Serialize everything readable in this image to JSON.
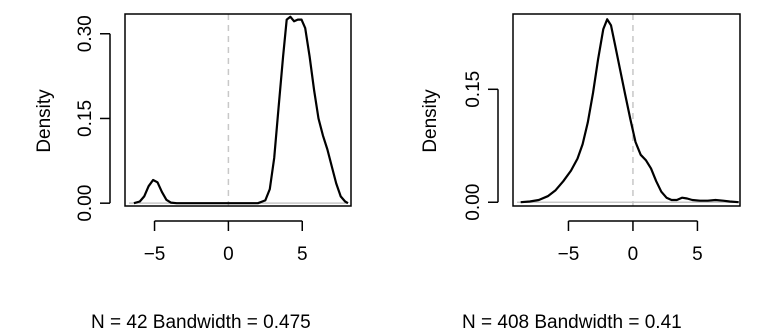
{
  "chart_data": [
    {
      "type": "line",
      "title": "",
      "xlabel": "N = 42   Bandwidth = 0.475",
      "ylabel": "Density",
      "xlim": [
        -7,
        8.3
      ],
      "ylim": [
        -0.005,
        0.335
      ],
      "x_ticks": [
        -5,
        0,
        5
      ],
      "y_ticks": [
        0.0,
        0.15,
        0.3
      ],
      "y_tick_labels": [
        "0.00",
        "0.15",
        "0.30"
      ],
      "reference_line": {
        "x": 0,
        "style": "dashed",
        "color": "#c8c8c8"
      },
      "baseline": {
        "y": 0,
        "color": "#c8c8c8"
      },
      "series": [
        {
          "values": [
            [
              -6.4,
              0.0
            ],
            [
              -6.0,
              0.003
            ],
            [
              -5.7,
              0.012
            ],
            [
              -5.4,
              0.03
            ],
            [
              -5.1,
              0.041
            ],
            [
              -4.8,
              0.037
            ],
            [
              -4.5,
              0.02
            ],
            [
              -4.2,
              0.006
            ],
            [
              -3.9,
              0.001
            ],
            [
              -3.5,
              0.0
            ],
            [
              -1,
              0.0
            ],
            [
              1,
              0.0
            ],
            [
              2.0,
              0.0
            ],
            [
              2.5,
              0.005
            ],
            [
              2.8,
              0.025
            ],
            [
              3.1,
              0.08
            ],
            [
              3.4,
              0.17
            ],
            [
              3.7,
              0.26
            ],
            [
              3.95,
              0.325
            ],
            [
              4.2,
              0.33
            ],
            [
              4.45,
              0.322
            ],
            [
              4.7,
              0.325
            ],
            [
              4.95,
              0.325
            ],
            [
              5.2,
              0.31
            ],
            [
              5.5,
              0.26
            ],
            [
              5.8,
              0.2
            ],
            [
              6.1,
              0.15
            ],
            [
              6.4,
              0.12
            ],
            [
              6.7,
              0.095
            ],
            [
              7.0,
              0.065
            ],
            [
              7.3,
              0.035
            ],
            [
              7.6,
              0.012
            ],
            [
              7.9,
              0.003
            ],
            [
              8.1,
              0.0
            ]
          ]
        }
      ]
    },
    {
      "type": "line",
      "title": "",
      "xlabel": "N = 408   Bandwidth = 0.41",
      "ylabel": "Density",
      "xlim": [
        -9.3,
        8.3
      ],
      "ylim": [
        -0.005,
        0.25
      ],
      "x_ticks": [
        -5,
        0,
        5
      ],
      "y_ticks": [
        0.0,
        0.15
      ],
      "y_tick_labels": [
        "0.00",
        "0.15"
      ],
      "reference_line": {
        "x": 0,
        "style": "dashed",
        "color": "#c8c8c8"
      },
      "baseline": {
        "y": 0,
        "color": "#c8c8c8"
      },
      "series": [
        {
          "values": [
            [
              -8.7,
              0.0
            ],
            [
              -8.0,
              0.001
            ],
            [
              -7.3,
              0.003
            ],
            [
              -6.6,
              0.008
            ],
            [
              -6.0,
              0.016
            ],
            [
              -5.4,
              0.028
            ],
            [
              -4.8,
              0.042
            ],
            [
              -4.3,
              0.058
            ],
            [
              -3.9,
              0.077
            ],
            [
              -3.5,
              0.106
            ],
            [
              -3.1,
              0.145
            ],
            [
              -2.7,
              0.19
            ],
            [
              -2.3,
              0.23
            ],
            [
              -2.0,
              0.243
            ],
            [
              -1.7,
              0.235
            ],
            [
              -1.4,
              0.21
            ],
            [
              -1.0,
              0.176
            ],
            [
              -0.6,
              0.143
            ],
            [
              -0.2,
              0.11
            ],
            [
              0.2,
              0.08
            ],
            [
              0.6,
              0.063
            ],
            [
              1.0,
              0.056
            ],
            [
              1.4,
              0.045
            ],
            [
              1.8,
              0.028
            ],
            [
              2.2,
              0.014
            ],
            [
              2.6,
              0.006
            ],
            [
              3.0,
              0.003
            ],
            [
              3.4,
              0.003
            ],
            [
              3.8,
              0.006
            ],
            [
              4.2,
              0.005
            ],
            [
              4.6,
              0.003
            ],
            [
              5.2,
              0.002
            ],
            [
              5.8,
              0.002
            ],
            [
              6.4,
              0.003
            ],
            [
              7.0,
              0.002
            ],
            [
              7.5,
              0.001
            ],
            [
              8.2,
              0.0
            ]
          ]
        }
      ]
    }
  ]
}
